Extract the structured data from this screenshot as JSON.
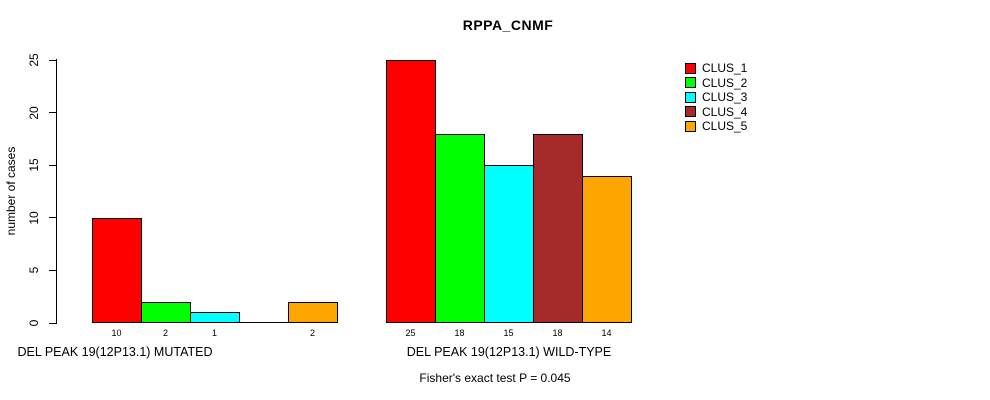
{
  "chart_data": {
    "type": "bar",
    "title": "RPPA_CNMF",
    "ylabel": "number of cases",
    "xlabel": "",
    "ylim": [
      0,
      25
    ],
    "yticks": [
      0,
      5,
      10,
      15,
      20,
      25
    ],
    "grid": false,
    "legend_position": "right",
    "series": [
      "CLUS_1",
      "CLUS_2",
      "CLUS_3",
      "CLUS_4",
      "CLUS_5"
    ],
    "series_colors": [
      "#FF0000",
      "#00FF00",
      "#00FFFF",
      "#A52A2A",
      "#FFA500"
    ],
    "groups": [
      {
        "label": "DEL PEAK 19(12P13.1) MUTATED",
        "values": [
          10,
          2,
          1,
          0,
          2
        ],
        "bar_labels": [
          "10",
          "2",
          "1",
          "",
          "2"
        ]
      },
      {
        "label": "DEL PEAK 19(12P13.1) WILD-TYPE",
        "values": [
          25,
          18,
          15,
          18,
          14
        ],
        "bar_labels": [
          "25",
          "18",
          "15",
          "18",
          "14"
        ]
      }
    ],
    "annotation": "Fisher's exact test P = 0.045",
    "axis_color": "#000000",
    "background_color": "#FFFFFF"
  }
}
